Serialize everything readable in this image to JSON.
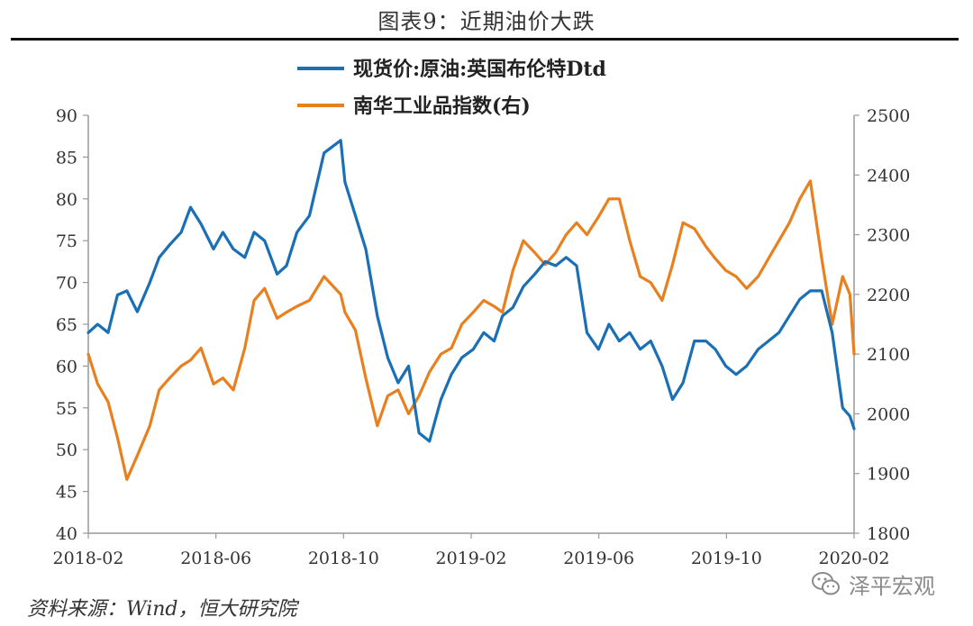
{
  "figure_title": "图表9：近期油价大跌",
  "source": "资料来源：Wind，恒大研究院",
  "watermark": "泽平宏观",
  "chart_data": {
    "type": "line",
    "legend": [
      "现货价:原油:英国布伦特Dtd",
      "南华工业品指数(右)"
    ],
    "colors": {
      "brent": "#1a6fb5",
      "nanhua": "#e8801f"
    },
    "x_tick_labels": [
      "2018-02",
      "2018-06",
      "2018-10",
      "2019-02",
      "2019-06",
      "2019-10",
      "2020-02"
    ],
    "y_left": {
      "ticks": [
        40,
        45,
        50,
        55,
        60,
        65,
        70,
        75,
        80,
        85,
        90
      ],
      "range": [
        40,
        90
      ]
    },
    "y_right": {
      "ticks": [
        1800,
        1900,
        2000,
        2100,
        2200,
        2300,
        2400,
        2500
      ],
      "range": [
        1800,
        2500
      ]
    },
    "series": [
      {
        "name": "现货价:原油:英国布伦特Dtd",
        "axis": "left",
        "x": [
          "2018-02-01",
          "2018-02-10",
          "2018-02-20",
          "2018-03-01",
          "2018-03-10",
          "2018-03-20",
          "2018-04-01",
          "2018-04-10",
          "2018-04-20",
          "2018-05-01",
          "2018-05-10",
          "2018-05-20",
          "2018-06-01",
          "2018-06-10",
          "2018-06-20",
          "2018-07-01",
          "2018-07-10",
          "2018-07-20",
          "2018-08-01",
          "2018-08-10",
          "2018-08-20",
          "2018-09-01",
          "2018-09-15",
          "2018-10-01",
          "2018-10-05",
          "2018-10-15",
          "2018-10-25",
          "2018-11-05",
          "2018-11-15",
          "2018-11-25",
          "2018-12-05",
          "2018-12-15",
          "2018-12-25",
          "2019-01-05",
          "2019-01-15",
          "2019-01-25",
          "2019-02-05",
          "2019-02-15",
          "2019-02-25",
          "2019-03-05",
          "2019-03-15",
          "2019-03-25",
          "2019-04-05",
          "2019-04-15",
          "2019-04-25",
          "2019-05-05",
          "2019-05-15",
          "2019-05-25",
          "2019-06-05",
          "2019-06-15",
          "2019-06-25",
          "2019-07-05",
          "2019-07-15",
          "2019-07-25",
          "2019-08-05",
          "2019-08-15",
          "2019-08-25",
          "2019-09-05",
          "2019-09-16",
          "2019-09-25",
          "2019-10-05",
          "2019-10-15",
          "2019-10-25",
          "2019-11-05",
          "2019-11-15",
          "2019-11-25",
          "2019-12-05",
          "2019-12-15",
          "2019-12-25",
          "2020-01-05",
          "2020-01-15",
          "2020-01-25",
          "2020-02-01",
          "2020-02-05"
        ],
        "values": [
          64,
          65,
          64,
          68.5,
          69,
          66.5,
          70,
          73,
          74.5,
          76,
          79,
          77,
          74,
          76,
          74,
          73,
          76,
          75,
          71,
          72,
          76,
          78,
          85.5,
          87,
          82,
          78,
          74,
          66,
          61,
          58,
          60,
          52,
          51,
          56,
          59,
          61,
          62,
          64,
          63,
          66,
          67,
          69.5,
          71,
          72.5,
          72,
          73,
          72,
          64,
          62,
          65,
          63,
          64,
          62,
          63,
          60,
          56,
          58,
          63,
          63,
          62,
          60,
          59,
          60,
          62,
          63,
          64,
          66,
          68,
          69,
          69,
          64,
          55,
          54,
          52.5
        ]
      },
      {
        "name": "南华工业品指数(右)",
        "axis": "right",
        "x": [
          "2018-02-01",
          "2018-02-10",
          "2018-02-20",
          "2018-03-01",
          "2018-03-10",
          "2018-03-20",
          "2018-04-01",
          "2018-04-10",
          "2018-04-20",
          "2018-05-01",
          "2018-05-10",
          "2018-05-20",
          "2018-06-01",
          "2018-06-10",
          "2018-06-20",
          "2018-07-01",
          "2018-07-10",
          "2018-07-20",
          "2018-08-01",
          "2018-08-10",
          "2018-08-20",
          "2018-09-01",
          "2018-09-15",
          "2018-10-01",
          "2018-10-05",
          "2018-10-15",
          "2018-10-25",
          "2018-11-05",
          "2018-11-15",
          "2018-11-25",
          "2018-12-05",
          "2018-12-15",
          "2018-12-25",
          "2019-01-05",
          "2019-01-15",
          "2019-01-25",
          "2019-02-05",
          "2019-02-15",
          "2019-02-25",
          "2019-03-05",
          "2019-03-15",
          "2019-03-25",
          "2019-04-05",
          "2019-04-15",
          "2019-04-25",
          "2019-05-05",
          "2019-05-15",
          "2019-05-25",
          "2019-06-05",
          "2019-06-15",
          "2019-06-25",
          "2019-07-05",
          "2019-07-15",
          "2019-07-25",
          "2019-08-05",
          "2019-08-15",
          "2019-08-25",
          "2019-09-05",
          "2019-09-16",
          "2019-09-25",
          "2019-10-05",
          "2019-10-15",
          "2019-10-25",
          "2019-11-05",
          "2019-11-15",
          "2019-11-25",
          "2019-12-05",
          "2019-12-15",
          "2019-12-25",
          "2020-01-05",
          "2020-01-15",
          "2020-01-25",
          "2020-02-01",
          "2020-02-05"
        ],
        "values": [
          2100,
          2050,
          2020,
          1960,
          1890,
          1930,
          1980,
          2040,
          2060,
          2080,
          2090,
          2110,
          2050,
          2060,
          2040,
          2110,
          2190,
          2210,
          2160,
          2170,
          2180,
          2190,
          2230,
          2200,
          2170,
          2140,
          2060,
          1980,
          2030,
          2040,
          2000,
          2030,
          2070,
          2100,
          2110,
          2150,
          2170,
          2190,
          2180,
          2170,
          2240,
          2290,
          2270,
          2250,
          2270,
          2300,
          2320,
          2300,
          2330,
          2360,
          2360,
          2290,
          2230,
          2220,
          2190,
          2250,
          2320,
          2310,
          2280,
          2260,
          2240,
          2230,
          2210,
          2230,
          2260,
          2290,
          2320,
          2360,
          2390,
          2260,
          2150,
          2230,
          2200,
          2100
        ]
      }
    ]
  }
}
